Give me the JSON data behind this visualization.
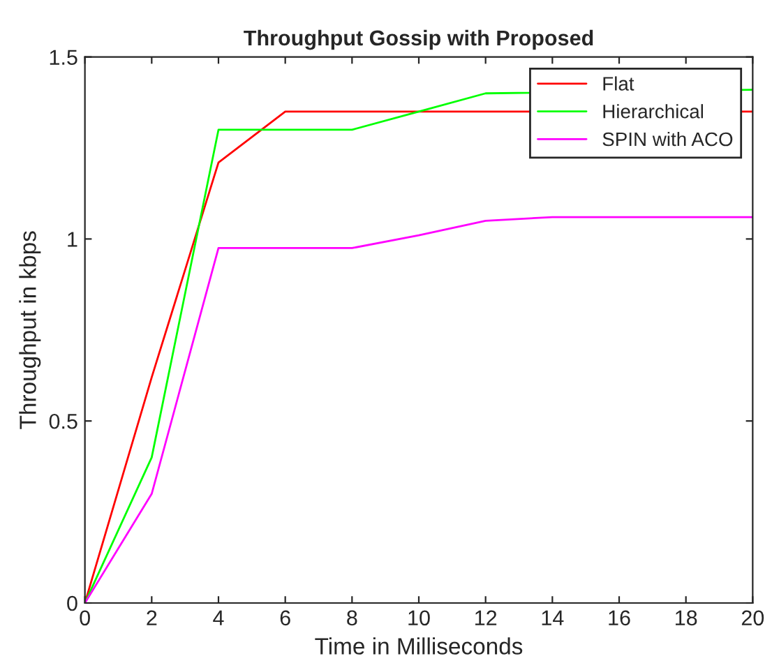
{
  "chart_data": {
    "type": "line",
    "title": "Throughput Gossip with Proposed",
    "xlabel": "Time in Milliseconds",
    "ylabel": "Throughput in kbps",
    "x": [
      0,
      2,
      4,
      6,
      8,
      10,
      12,
      14,
      16,
      18,
      20
    ],
    "series": [
      {
        "name": "Flat",
        "color": "#ff0000",
        "values": [
          0,
          0.62,
          1.21,
          1.35,
          1.35,
          1.35,
          1.35,
          null,
          null,
          null,
          1.35
        ]
      },
      {
        "name": "Hierarchical",
        "color": "#00ff00",
        "values": [
          0,
          0.4,
          1.3,
          1.3,
          1.3,
          1.35,
          1.4,
          null,
          null,
          null,
          1.41
        ]
      },
      {
        "name": "SPIN with ACO",
        "color": "#ff00ff",
        "values": [
          0,
          0.3,
          0.975,
          0.975,
          0.975,
          1.01,
          1.05,
          1.06,
          1.06,
          1.06,
          1.06
        ]
      }
    ],
    "xlim": [
      0,
      20
    ],
    "xticks": [
      0,
      2,
      4,
      6,
      8,
      10,
      12,
      14,
      16,
      18,
      20
    ],
    "ylim": [
      0,
      1.5
    ],
    "yticks": [
      0,
      0.5,
      1,
      1.5
    ],
    "grid": false,
    "legend": "top right"
  }
}
